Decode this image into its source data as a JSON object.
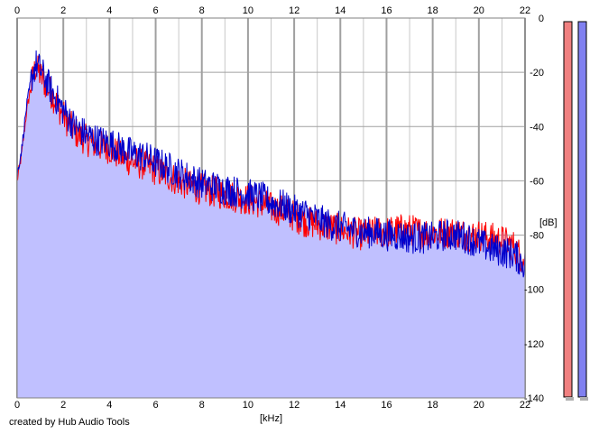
{
  "credit": "created by Hub Audio Tools",
  "colors": {
    "background": "#ffffff",
    "plot_background": "#ffffff",
    "grid": "#a0a0a0",
    "grid_minor": "#c8c8c8",
    "fill_area": "#c0c0ff",
    "left_channel": "#ff0000",
    "right_channel": "#0000cc",
    "meter_left": "#f08080",
    "meter_right": "#8080f0"
  },
  "chart_data": {
    "type": "line",
    "title": "",
    "xlabel": "[kHz]",
    "ylabel": "[dB]",
    "xlim": [
      0,
      22
    ],
    "ylim": [
      -140,
      0
    ],
    "xticks": [
      "0",
      "2",
      "4",
      "6",
      "8",
      "10",
      "12",
      "14",
      "16",
      "18",
      "20",
      "22"
    ],
    "yticks": [
      "0",
      "-20",
      "-40",
      "-60",
      "-80",
      "-100",
      "-120",
      "-140"
    ],
    "grid": true,
    "legend": "none",
    "x": [
      0,
      0.2,
      0.4,
      0.6,
      0.8,
      1.0,
      1.2,
      1.5,
      2.0,
      2.5,
      3.0,
      3.5,
      4.0,
      4.5,
      5.0,
      5.5,
      6.0,
      6.5,
      7.0,
      7.5,
      8.0,
      8.5,
      9.0,
      9.5,
      10.0,
      10.5,
      11.0,
      11.5,
      12.0,
      12.5,
      13.0,
      13.5,
      14.0,
      14.5,
      15.0,
      15.5,
      16.0,
      16.5,
      17.0,
      17.5,
      18.0,
      18.5,
      19.0,
      19.5,
      20.0,
      20.5,
      21.0,
      21.5,
      22.0
    ],
    "series": [
      {
        "values": [
          -60,
          -50,
          -35,
          -25,
          -18,
          -21,
          -24,
          -28,
          -36,
          -42,
          -45,
          -47,
          -48,
          -51,
          -53,
          -54,
          -56,
          -58,
          -60,
          -62,
          -63,
          -64,
          -65,
          -66,
          -67,
          -68,
          -70,
          -71,
          -73,
          -75,
          -76,
          -77,
          -78,
          -79,
          -80,
          -79,
          -79,
          -78,
          -78,
          -79,
          -79,
          -79,
          -79,
          -80,
          -80,
          -81,
          -82,
          -84,
          -90
        ]
      },
      {
        "values": [
          -58,
          -48,
          -33,
          -23,
          -17,
          -19,
          -22,
          -27,
          -34,
          -40,
          -43,
          -45,
          -46,
          -48,
          -50,
          -51,
          -53,
          -55,
          -57,
          -59,
          -61,
          -62,
          -63,
          -64,
          -65,
          -66,
          -68,
          -69,
          -71,
          -72,
          -74,
          -76,
          -77,
          -78,
          -79,
          -79,
          -80,
          -80,
          -81,
          -81,
          -81,
          -80,
          -80,
          -81,
          -83,
          -85,
          -86,
          -87,
          -91
        ]
      }
    ]
  }
}
